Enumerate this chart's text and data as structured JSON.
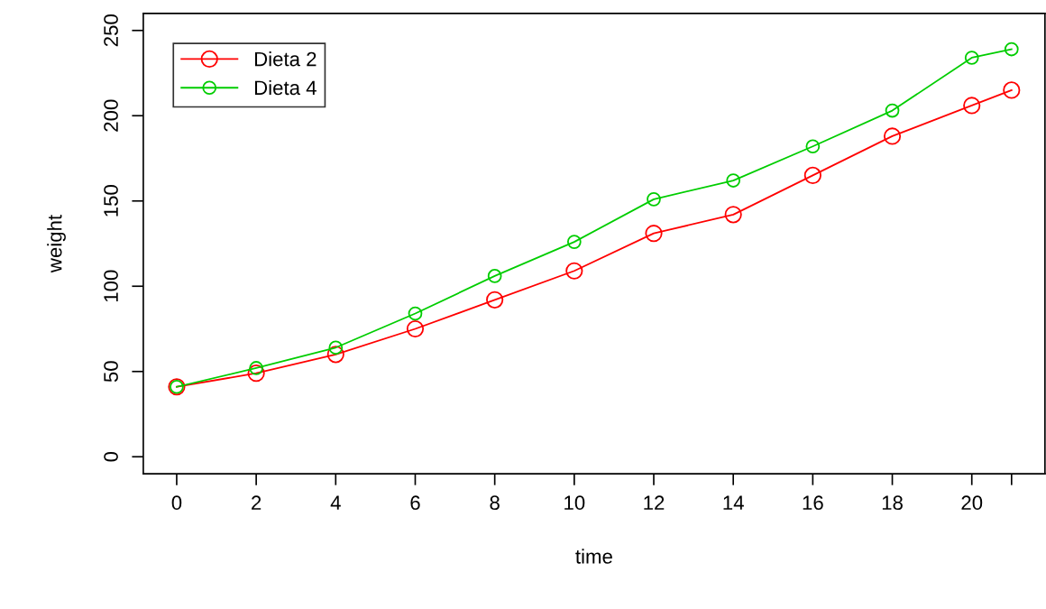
{
  "chart_data": {
    "type": "line",
    "xlabel": "time",
    "ylabel": "weight",
    "x": [
      0,
      2,
      4,
      6,
      8,
      10,
      12,
      14,
      16,
      18,
      20,
      21
    ],
    "series": [
      {
        "name": "Dieta 2",
        "color": "#ff0000",
        "values": [
          41,
          49,
          60,
          75,
          92,
          109,
          131,
          142,
          165,
          188,
          206,
          215
        ]
      },
      {
        "name": "Dieta 4",
        "color": "#00cd00",
        "values": [
          41,
          52,
          64,
          84,
          106,
          126,
          151,
          162,
          182,
          203,
          234,
          239
        ]
      }
    ],
    "xlim": [
      -0.84,
      21.84
    ],
    "xticks": [
      0,
      2,
      4,
      6,
      8,
      10,
      12,
      14,
      16,
      18,
      20,
      {
        "value": 21,
        "label": null
      }
    ],
    "ylim": [
      -10,
      260
    ],
    "yticks": [
      0,
      50,
      100,
      150,
      200,
      250
    ],
    "grid": false,
    "legend": "top left",
    "marker": "circle",
    "line_style": "solid"
  }
}
